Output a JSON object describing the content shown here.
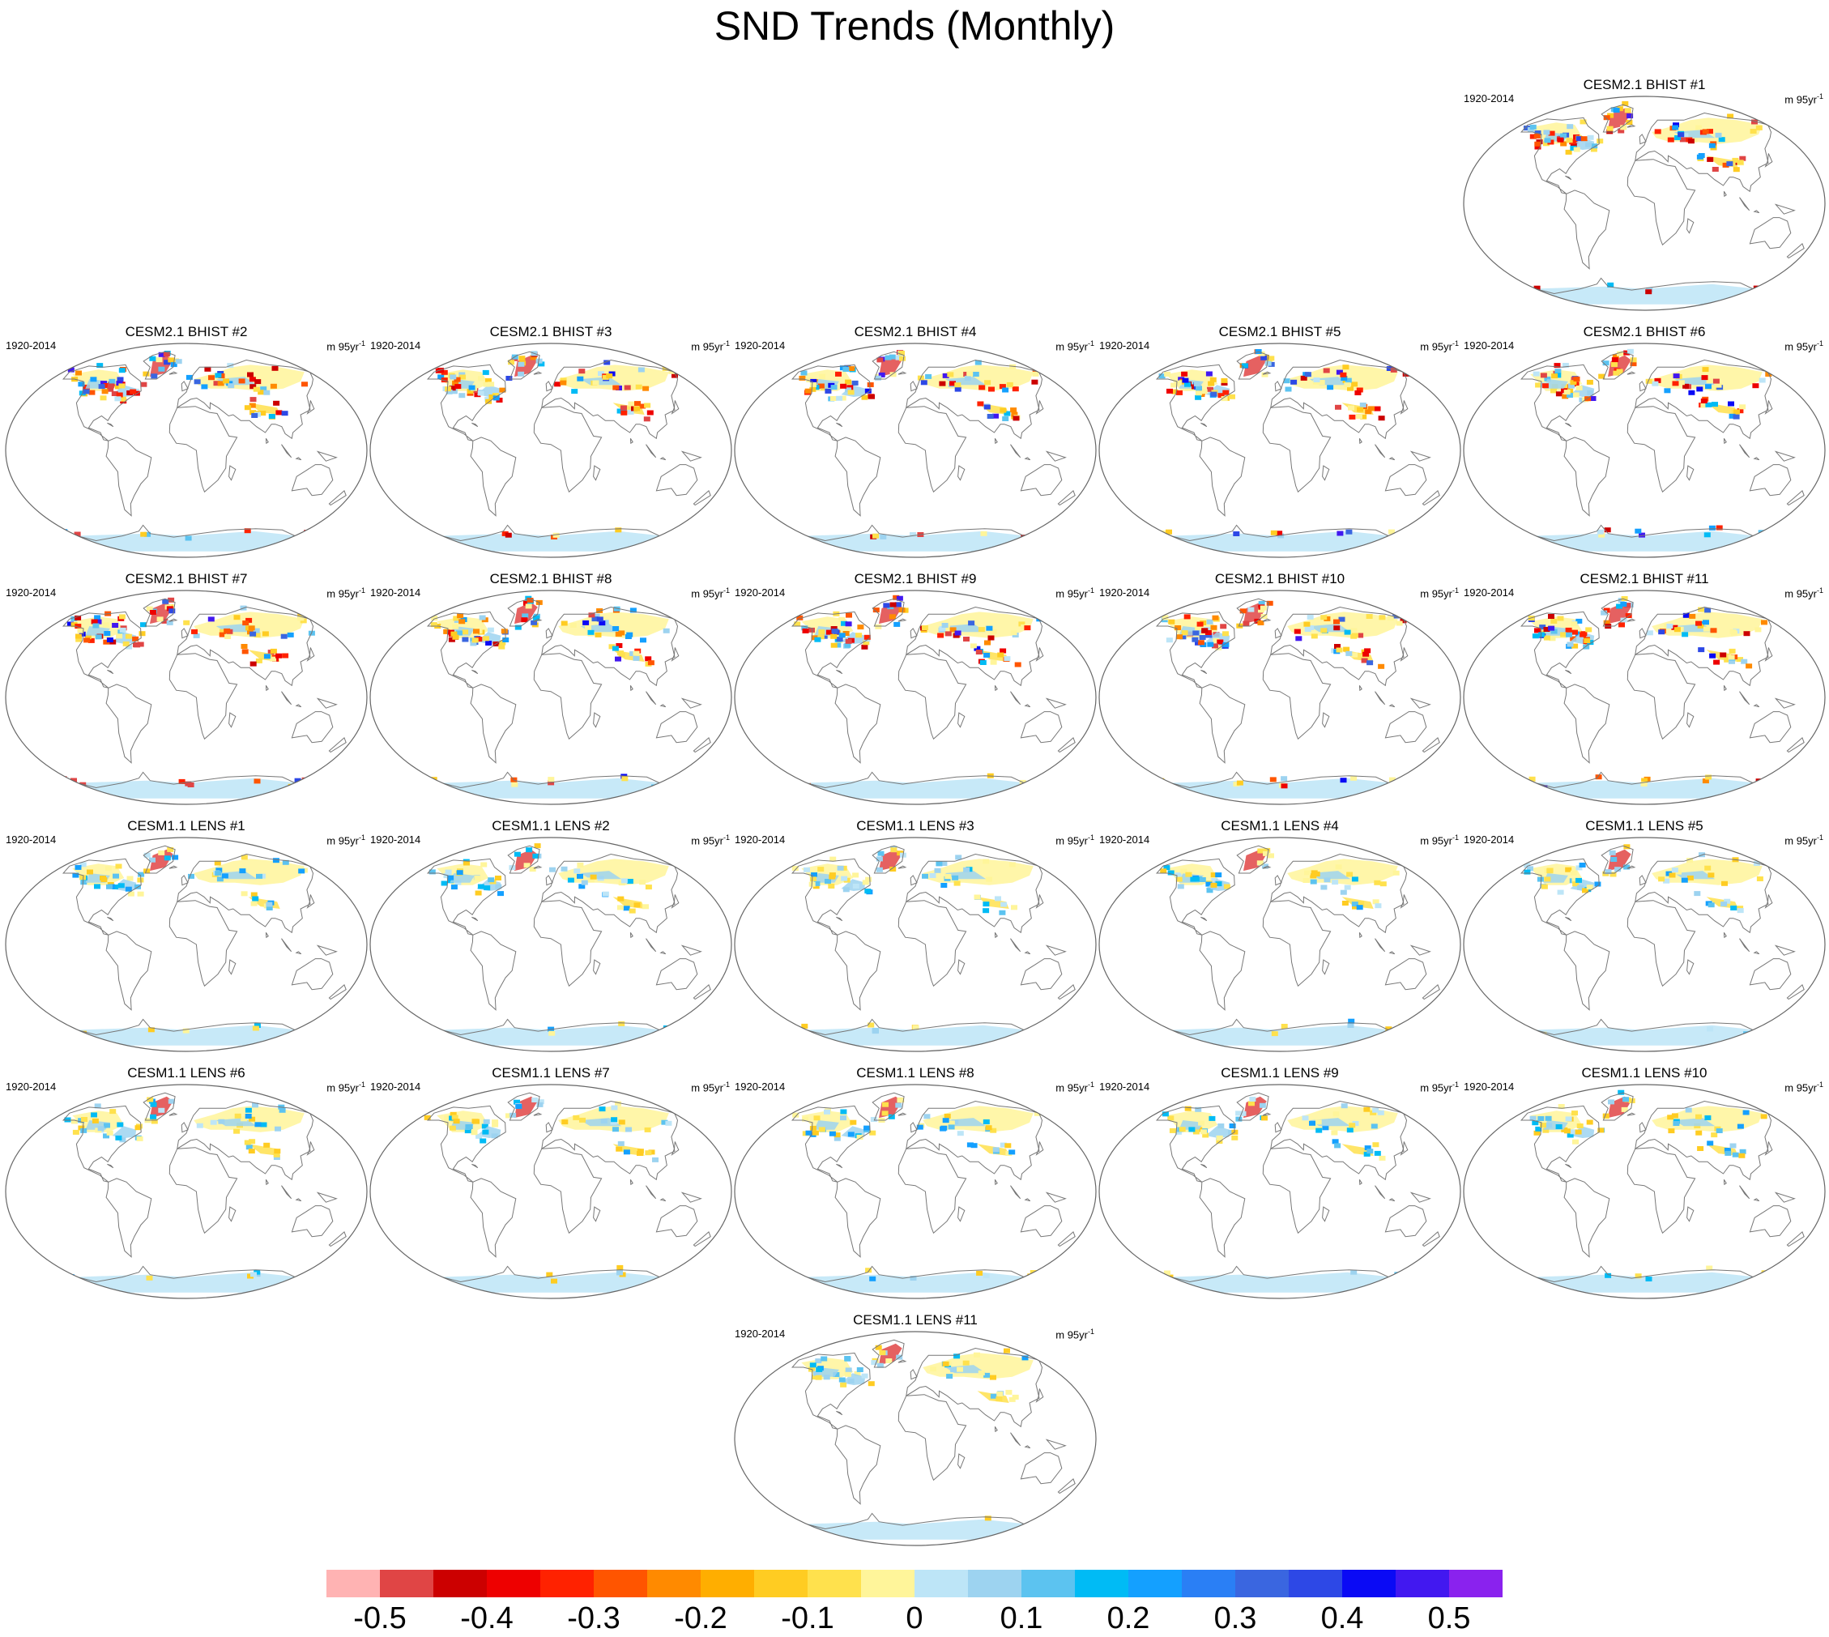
{
  "title": "SND Trends (Monthly)",
  "period_label": "1920-2014",
  "units_label": "m 95yr",
  "units_exponent": "-1",
  "panels": [
    {
      "name": "CESM2.1 BHIST #1",
      "model": "CESM2.1",
      "intensity": 0.9
    },
    {
      "name": "CESM2.1 BHIST #2",
      "model": "CESM2.1",
      "intensity": 0.9
    },
    {
      "name": "CESM2.1 BHIST #3",
      "model": "CESM2.1",
      "intensity": 0.9
    },
    {
      "name": "CESM2.1 BHIST #4",
      "model": "CESM2.1",
      "intensity": 0.9
    },
    {
      "name": "CESM2.1 BHIST #5",
      "model": "CESM2.1",
      "intensity": 0.9
    },
    {
      "name": "CESM2.1 BHIST #6",
      "model": "CESM2.1",
      "intensity": 0.9
    },
    {
      "name": "CESM2.1 BHIST #7",
      "model": "CESM2.1",
      "intensity": 0.9
    },
    {
      "name": "CESM2.1 BHIST #8",
      "model": "CESM2.1",
      "intensity": 0.9
    },
    {
      "name": "CESM2.1 BHIST #9",
      "model": "CESM2.1",
      "intensity": 0.9
    },
    {
      "name": "CESM2.1 BHIST #10",
      "model": "CESM2.1",
      "intensity": 0.9
    },
    {
      "name": "CESM2.1 BHIST #11",
      "model": "CESM2.1",
      "intensity": 0.9
    },
    {
      "name": "CESM1.1 LENS #1",
      "model": "CESM1.1",
      "intensity": 0.4
    },
    {
      "name": "CESM1.1 LENS #2",
      "model": "CESM1.1",
      "intensity": 0.4
    },
    {
      "name": "CESM1.1 LENS #3",
      "model": "CESM1.1",
      "intensity": 0.4
    },
    {
      "name": "CESM1.1 LENS #4",
      "model": "CESM1.1",
      "intensity": 0.4
    },
    {
      "name": "CESM1.1 LENS #5",
      "model": "CESM1.1",
      "intensity": 0.4
    },
    {
      "name": "CESM1.1 LENS #6",
      "model": "CESM1.1",
      "intensity": 0.4
    },
    {
      "name": "CESM1.1 LENS #7",
      "model": "CESM1.1",
      "intensity": 0.4
    },
    {
      "name": "CESM1.1 LENS #8",
      "model": "CESM1.1",
      "intensity": 0.4
    },
    {
      "name": "CESM1.1 LENS #9",
      "model": "CESM1.1",
      "intensity": 0.4
    },
    {
      "name": "CESM1.1 LENS #10",
      "model": "CESM1.1",
      "intensity": 0.4
    },
    {
      "name": "CESM1.1 LENS #11",
      "model": "CESM1.1",
      "intensity": 0.4
    }
  ],
  "colorbar": {
    "colors": [
      "#ffb3b3",
      "#e04545",
      "#cc0000",
      "#ee0000",
      "#ff2200",
      "#ff5500",
      "#ff8a00",
      "#ffae00",
      "#ffcc22",
      "#ffe14d",
      "#fff59a",
      "#bde5f7",
      "#9dd3f0",
      "#5cc3f0",
      "#00bbf5",
      "#14a0ff",
      "#2a7ff5",
      "#3a66e0",
      "#2d48e6",
      "#0a0af5",
      "#4218f0",
      "#8a22ee"
    ],
    "labels": [
      "-0.5",
      "-0.4",
      "-0.3",
      "-0.2",
      "-0.1",
      "0",
      "0.1",
      "0.2",
      "0.3",
      "0.4",
      "0.5"
    ]
  },
  "map_colors": {
    "coastline": "#777777",
    "border": "#666666"
  }
}
